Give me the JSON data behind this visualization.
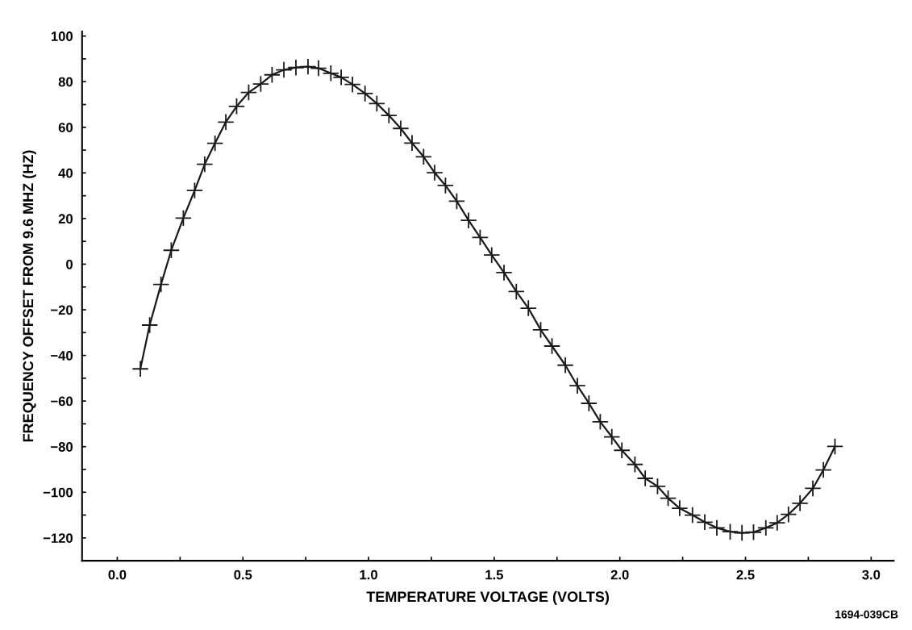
{
  "chart_data": {
    "type": "line",
    "xlabel": "TEMPERATURE VOLTAGE (VOLTS)",
    "ylabel": "FREQUENCY OFFSET FROM 9.6 MHZ (HZ)",
    "annotations": [
      "1694-039CB"
    ],
    "series": [
      {
        "color": "#1a1a1a",
        "x": [
          0.092,
          0.129,
          0.174,
          0.215,
          0.263,
          0.308,
          0.348,
          0.389,
          0.432,
          0.475,
          0.523,
          0.571,
          0.616,
          0.663,
          0.711,
          0.759,
          0.801,
          0.85,
          0.891,
          0.936,
          0.986,
          1.033,
          1.081,
          1.128,
          1.173,
          1.219,
          1.263,
          1.306,
          1.351,
          1.398,
          1.444,
          1.49,
          1.539,
          1.588,
          1.636,
          1.685,
          1.73,
          1.783,
          1.831,
          1.877,
          1.922,
          1.968,
          2.008,
          2.06,
          2.101,
          2.15,
          2.192,
          2.238,
          2.289,
          2.338,
          2.386,
          2.439,
          2.486,
          2.532,
          2.581,
          2.626,
          2.671,
          2.717,
          2.768,
          2.81,
          2.856
        ],
        "values": [
          -45.9,
          -26.7,
          -8.9,
          6.1,
          20.2,
          32.3,
          43.8,
          53.0,
          62.3,
          69.2,
          75.3,
          79.0,
          83.0,
          85.2,
          86.2,
          86.6,
          85.9,
          83.7,
          81.9,
          78.8,
          74.8,
          70.4,
          65.2,
          59.5,
          53.1,
          47.1,
          40.1,
          34.5,
          27.6,
          19.2,
          11.7,
          4.0,
          -3.7,
          -12.0,
          -19.3,
          -28.8,
          -35.9,
          -44.3,
          -53.3,
          -61.0,
          -69.1,
          -75.7,
          -81.6,
          -87.8,
          -93.9,
          -97.4,
          -102.6,
          -107.0,
          -110.0,
          -113.1,
          -115.6,
          -117.3,
          -117.8,
          -117.5,
          -115.6,
          -113.4,
          -109.7,
          -104.8,
          -98.3,
          -90.2,
          -79.9
        ]
      }
    ],
    "marker": "cross",
    "line_style": "solid",
    "grid": false,
    "xlim": [
      -0.14,
      3.09
    ],
    "xticks": [
      {
        "value": 0,
        "label": "0.0"
      },
      {
        "value": 0.25,
        "label": null
      },
      {
        "value": 0.5,
        "label": "0.5"
      },
      {
        "value": 0.75,
        "label": null
      },
      {
        "value": 1,
        "label": "1.0"
      },
      {
        "value": 1.25,
        "label": null
      },
      {
        "value": 1.5,
        "label": "1.5"
      },
      {
        "value": 1.75,
        "label": null
      },
      {
        "value": 2,
        "label": "2.0"
      },
      {
        "value": 2.25,
        "label": null
      },
      {
        "value": 2.5,
        "label": "2.5"
      },
      {
        "value": 2.75,
        "label": null
      },
      {
        "value": 3,
        "label": "3.0"
      }
    ],
    "ylim": [
      -130,
      102
    ],
    "yticks": [
      {
        "value": -120,
        "label": "−120"
      },
      {
        "value": -110,
        "label": null
      },
      {
        "value": -100,
        "label": "−100"
      },
      {
        "value": -90,
        "label": null
      },
      {
        "value": -80,
        "label": "−80"
      },
      {
        "value": -70,
        "label": null
      },
      {
        "value": -60,
        "label": "−60"
      },
      {
        "value": -50,
        "label": null
      },
      {
        "value": -40,
        "label": "−40"
      },
      {
        "value": -30,
        "label": null
      },
      {
        "value": -20,
        "label": "−20"
      },
      {
        "value": -10,
        "label": null
      },
      0,
      {
        "value": 10,
        "label": null
      },
      20,
      {
        "value": 30,
        "label": null
      },
      40,
      {
        "value": 50,
        "label": null
      },
      60,
      {
        "value": 70,
        "label": null
      },
      80,
      {
        "value": 90,
        "label": null
      },
      100
    ]
  }
}
